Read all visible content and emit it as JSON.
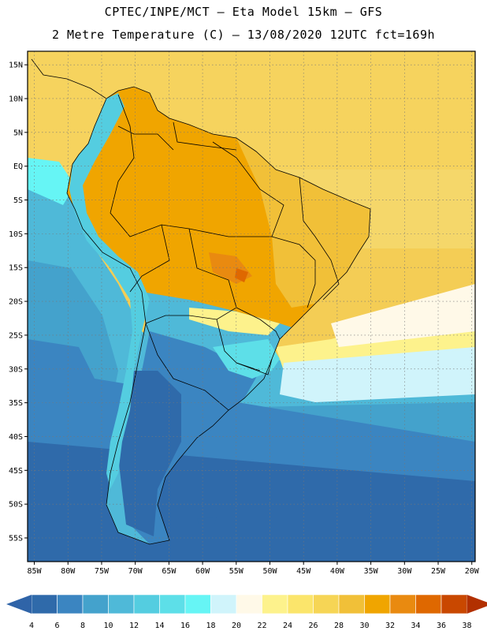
{
  "header": {
    "line1": "CPTEC/INPE/MCT –  Eta Model 15km – GFS",
    "line2": "2 Metre Temperature (C) – 13/08/2020 12UTC fct=169h"
  },
  "map": {
    "lon_min": -86,
    "lon_max": -19.5,
    "lat_min": -58.5,
    "lat_max": 17,
    "lat_ticks": [
      {
        "value": 15,
        "label": "15N"
      },
      {
        "value": 10,
        "label": "10N"
      },
      {
        "value": 5,
        "label": "5N"
      },
      {
        "value": 0,
        "label": "EQ"
      },
      {
        "value": -5,
        "label": "5S"
      },
      {
        "value": -10,
        "label": "10S"
      },
      {
        "value": -15,
        "label": "15S"
      },
      {
        "value": -20,
        "label": "20S"
      },
      {
        "value": -25,
        "label": "25S"
      },
      {
        "value": -30,
        "label": "30S"
      },
      {
        "value": -35,
        "label": "35S"
      },
      {
        "value": -40,
        "label": "40S"
      },
      {
        "value": -45,
        "label": "45S"
      },
      {
        "value": -50,
        "label": "50S"
      },
      {
        "value": -55,
        "label": "55S"
      }
    ],
    "lon_ticks": [
      {
        "value": -85,
        "label": "85W"
      },
      {
        "value": -80,
        "label": "80W"
      },
      {
        "value": -75,
        "label": "75W"
      },
      {
        "value": -70,
        "label": "70W"
      },
      {
        "value": -65,
        "label": "65W"
      },
      {
        "value": -60,
        "label": "60W"
      },
      {
        "value": -55,
        "label": "55W"
      },
      {
        "value": -50,
        "label": "50W"
      },
      {
        "value": -45,
        "label": "45W"
      },
      {
        "value": -40,
        "label": "40W"
      },
      {
        "value": -35,
        "label": "35W"
      },
      {
        "value": -30,
        "label": "30W"
      },
      {
        "value": -25,
        "label": "25W"
      },
      {
        "value": -20,
        "label": "20W"
      }
    ]
  },
  "colorbar": {
    "labels": [
      "4",
      "6",
      "8",
      "10",
      "12",
      "14",
      "16",
      "18",
      "20",
      "22",
      "24",
      "26",
      "28",
      "30",
      "32",
      "34",
      "36",
      "38"
    ],
    "colors": [
      "#2f6aaa",
      "#3b85c1",
      "#44a2cc",
      "#4fb9d8",
      "#54cde0",
      "#5ddfe8",
      "#66f5f5",
      "#d0f4fb",
      "#fff9e8",
      "#fdf28c",
      "#fbe56b",
      "#f6d555",
      "#f1c038",
      "#f0a500",
      "#e98a10",
      "#df6800",
      "#c94800"
    ],
    "low_arrow_color": "#2f64a8",
    "high_arrow_color": "#b23000"
  }
}
